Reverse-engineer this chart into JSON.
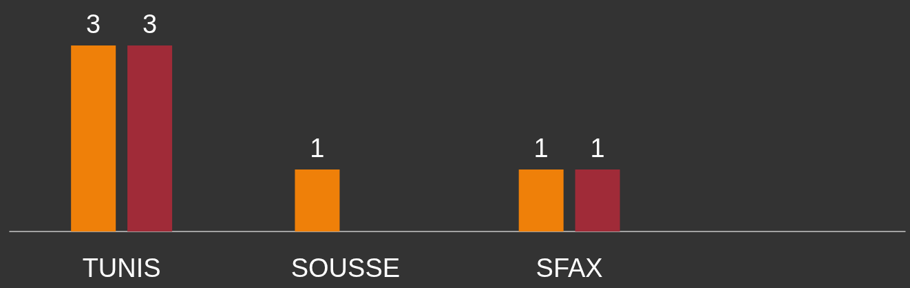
{
  "chart_data": {
    "type": "bar",
    "categories": [
      "TUNIS",
      "SOUSSE",
      "SFAX",
      null
    ],
    "series": [
      {
        "color": "#ef8009",
        "values": [
          3,
          1,
          1,
          null
        ]
      },
      {
        "color": "#a02b38",
        "values": [
          3,
          null,
          1,
          null
        ]
      }
    ],
    "data_labels": true
  }
}
